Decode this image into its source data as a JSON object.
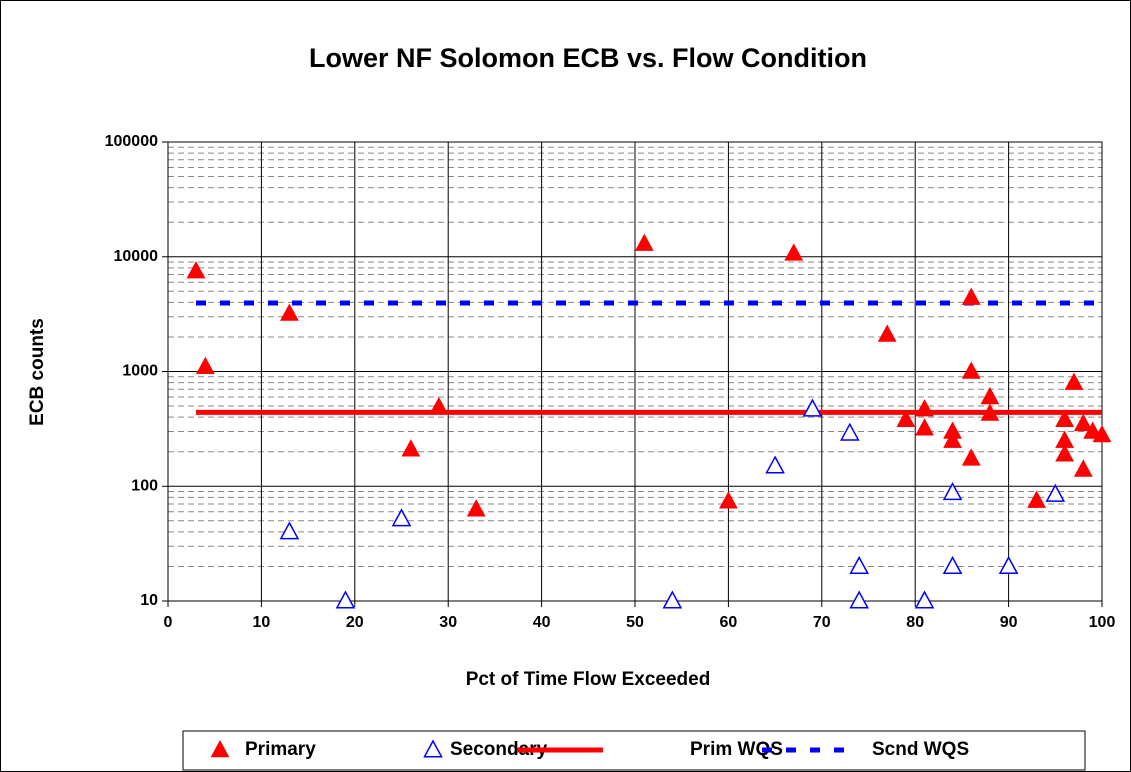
{
  "chart_data": {
    "type": "scatter",
    "title": "Lower NF Solomon ECB vs. Flow Condition",
    "x_label": "Pct of Time Flow Exceeded",
    "y_label": "ECB counts",
    "xlim": [
      0,
      100
    ],
    "xticks": [
      0,
      10,
      20,
      30,
      40,
      50,
      60,
      70,
      80,
      90,
      100
    ],
    "ylim": [
      10,
      100000
    ],
    "yticks": [
      10,
      100,
      1000,
      10000,
      100000
    ],
    "log_y": true,
    "grid": true,
    "minor_grid": true,
    "legend": "bottom",
    "series": [
      {
        "name": "Primary",
        "color": "#ff0000",
        "style": "filled-triangle",
        "x": [
          3,
          4,
          13,
          26,
          29,
          33,
          51,
          60,
          67,
          77,
          79,
          81,
          81,
          84,
          84,
          86,
          86,
          86,
          88,
          88,
          93,
          96,
          96,
          96,
          97,
          98,
          98,
          99,
          100
        ],
        "values": [
          7500,
          1100,
          3200,
          210,
          490,
          63,
          13000,
          74,
          10700,
          2100,
          380,
          470,
          320,
          300,
          250,
          4400,
          1000,
          175,
          600,
          430,
          75,
          380,
          250,
          190,
          800,
          350,
          140,
          300,
          280
        ]
      },
      {
        "name": "Secondary",
        "color": "#0000ff",
        "style": "open-triangle",
        "x": [
          13,
          19,
          25,
          54,
          65,
          69,
          73,
          74,
          74,
          81,
          84,
          84,
          90,
          95
        ],
        "values": [
          40,
          10,
          52,
          10,
          150,
          470,
          290,
          20,
          10,
          10,
          88,
          20,
          20,
          85
        ]
      },
      {
        "name": "Prim WQS",
        "color": "#ff0000",
        "style": "solid-line",
        "x": [
          3,
          100
        ],
        "values": [
          440,
          440
        ]
      },
      {
        "name": "Scnd WQS",
        "color": "#0000ff",
        "style": "dashed-line",
        "x": [
          3,
          100
        ],
        "values": [
          3950,
          3950
        ]
      }
    ]
  }
}
